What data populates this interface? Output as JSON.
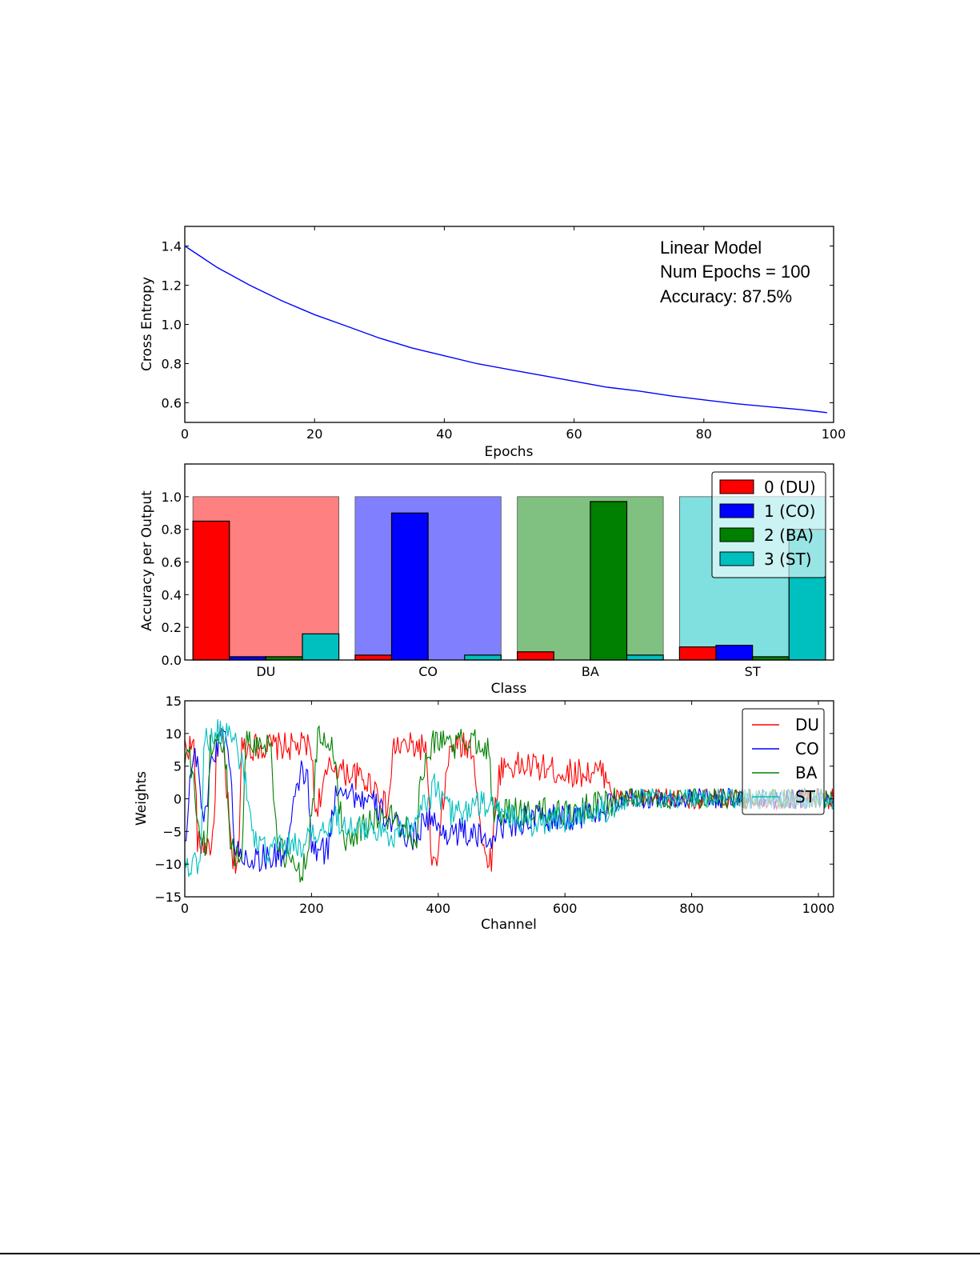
{
  "chart_data": [
    {
      "type": "line",
      "xlabel": "Epochs",
      "ylabel": "Cross Entropy",
      "xlim": [
        0,
        100
      ],
      "ylim": [
        0.5,
        1.5
      ],
      "xticks": [
        0,
        20,
        40,
        60,
        80,
        100
      ],
      "yticks": [
        0.6,
        0.8,
        1.0,
        1.2,
        1.4
      ],
      "ytick_labels": [
        "0.6",
        "0.8",
        "1.0",
        "1.2",
        "1.4"
      ],
      "grid": false,
      "annotation": [
        "Linear Model",
        "Num Epochs = 100",
        "Accuracy: 87.5%"
      ],
      "series": [
        {
          "color": "#0000ff",
          "x": [
            0,
            5,
            10,
            15,
            20,
            25,
            30,
            35,
            40,
            45,
            50,
            55,
            60,
            65,
            70,
            75,
            80,
            85,
            90,
            95,
            99
          ],
          "y": [
            1.4,
            1.29,
            1.2,
            1.12,
            1.05,
            0.99,
            0.93,
            0.88,
            0.84,
            0.8,
            0.77,
            0.74,
            0.71,
            0.68,
            0.66,
            0.635,
            0.615,
            0.595,
            0.58,
            0.565,
            0.55
          ]
        }
      ]
    },
    {
      "type": "bar",
      "xlabel": "Class",
      "ylabel": "Accuracy per Output",
      "categories": [
        "DU",
        "CO",
        "BA",
        "ST"
      ],
      "ylim": [
        0,
        1.2
      ],
      "yticks": [
        0.0,
        0.2,
        0.4,
        0.6,
        0.8,
        1.0
      ],
      "ytick_labels": [
        "0.0",
        "0.2",
        "0.4",
        "0.6",
        "0.8",
        "1.0"
      ],
      "background_bars": {
        "value": 1.0,
        "colors": [
          "#ff8080",
          "#8080ff",
          "#80c080",
          "#80e0e0"
        ]
      },
      "legend": {
        "position": "top-right"
      },
      "series": [
        {
          "name": "0 (DU)",
          "color": "#ff0000",
          "values": [
            0.85,
            0.03,
            0.05,
            0.08
          ]
        },
        {
          "name": "1 (CO)",
          "color": "#0000ff",
          "values": [
            0.02,
            0.9,
            0.0,
            0.09
          ]
        },
        {
          "name": "2 (BA)",
          "color": "#008000",
          "values": [
            0.02,
            0.0,
            0.97,
            0.02
          ]
        },
        {
          "name": "3 (ST)",
          "color": "#00bfbf",
          "values": [
            0.16,
            0.03,
            0.03,
            0.8
          ]
        }
      ]
    },
    {
      "type": "line",
      "xlabel": "Channel",
      "ylabel": "Weights",
      "xlim": [
        0,
        1024
      ],
      "ylim": [
        -15,
        15
      ],
      "xticks": [
        0,
        200,
        400,
        600,
        800,
        1000
      ],
      "yticks": [
        -15,
        -10,
        -5,
        0,
        5,
        10,
        15
      ],
      "ytick_labels": [
        "−15",
        "−10",
        "−5",
        "0",
        "5",
        "10",
        "15"
      ],
      "legend": {
        "position": "top-right"
      },
      "grid": false,
      "series": [
        {
          "name": "DU",
          "color": "#ff0000",
          "x": [
            0,
            15,
            20,
            45,
            50,
            60,
            75,
            85,
            90,
            100,
            115,
            140,
            180,
            200,
            205,
            230,
            240,
            250,
            260,
            280,
            300,
            310,
            320,
            330,
            350,
            370,
            380,
            385,
            390,
            400,
            405,
            420,
            425,
            440,
            455,
            470,
            480,
            485,
            490,
            495,
            500,
            520,
            550,
            600,
            640,
            660,
            670,
            680,
            700,
            800,
            900,
            1024
          ],
          "y": [
            8,
            8,
            -7,
            -7,
            8,
            9,
            -10,
            -9,
            8,
            8,
            8,
            8,
            8,
            8,
            -2,
            5,
            5,
            4,
            4,
            3,
            2,
            0,
            -2,
            8,
            8,
            8,
            8,
            -1,
            -10,
            -10,
            -2,
            8,
            8,
            8,
            8,
            -8,
            -9,
            -9,
            -1,
            3,
            5,
            5,
            5,
            4,
            4,
            4,
            3,
            0,
            0,
            0,
            0,
            0
          ]
        },
        {
          "name": "CO",
          "color": "#0000ff",
          "x": [
            0,
            10,
            20,
            30,
            40,
            55,
            62,
            70,
            80,
            95,
            110,
            140,
            160,
            175,
            185,
            195,
            200,
            225,
            240,
            250,
            260,
            280,
            300,
            320,
            340,
            360,
            380,
            390,
            400,
            420,
            440,
            460,
            480,
            500,
            550,
            600,
            650,
            700,
            800,
            900,
            1024
          ],
          "y": [
            -7,
            5,
            7,
            -5,
            5,
            9,
            12,
            6,
            -8,
            -9,
            -9,
            -9,
            -8,
            0,
            5,
            2,
            -8,
            -8,
            2,
            2,
            1,
            0,
            -1,
            -3,
            -5,
            -6,
            -3,
            -3,
            -5,
            -5,
            -5,
            -6,
            -6,
            -4,
            -3,
            -3,
            -2,
            0,
            0,
            0,
            0
          ]
        },
        {
          "name": "BA",
          "color": "#008000",
          "x": [
            0,
            5,
            25,
            35,
            40,
            55,
            65,
            70,
            80,
            90,
            95,
            100,
            120,
            135,
            145,
            150,
            160,
            170,
            180,
            190,
            200,
            210,
            220,
            235,
            250,
            270,
            300,
            320,
            330,
            350,
            360,
            365,
            370,
            380,
            385,
            400,
            420,
            425,
            440,
            460,
            480,
            485,
            490,
            500,
            550,
            600,
            650,
            700,
            800,
            900,
            1024
          ],
          "y": [
            5,
            8,
            -6,
            -8,
            8,
            9,
            6,
            -5,
            -9,
            -9,
            8,
            9,
            8,
            9,
            -5,
            -8,
            -9,
            -10,
            -11,
            -10,
            -3,
            9,
            9,
            8,
            -6,
            -5,
            -3,
            -3,
            -3,
            -4,
            -6,
            -7,
            0,
            7,
            8,
            9,
            9,
            8,
            9,
            9,
            8,
            -1,
            -3,
            -2,
            -2,
            -2,
            -1,
            0,
            0,
            0,
            0
          ]
        },
        {
          "name": "ST",
          "color": "#00bfbf",
          "x": [
            0,
            5,
            15,
            25,
            30,
            45,
            50,
            60,
            70,
            80,
            95,
            110,
            130,
            160,
            180,
            200,
            220,
            240,
            260,
            280,
            300,
            320,
            340,
            360,
            380,
            395,
            400,
            420,
            440,
            460,
            480,
            500,
            550,
            600,
            650,
            700,
            800,
            900,
            1024
          ],
          "y": [
            -9,
            -10,
            -10,
            -10,
            9,
            9,
            10,
            10,
            10,
            9,
            3,
            -7,
            -8,
            -7,
            -7,
            -6,
            -5,
            -3,
            -4,
            -5,
            -4,
            -6,
            -5,
            -3,
            -1,
            2,
            1,
            -2,
            -2,
            -1,
            -1,
            -2,
            -4,
            -3,
            -2,
            0,
            0,
            0,
            0
          ]
        }
      ]
    }
  ]
}
